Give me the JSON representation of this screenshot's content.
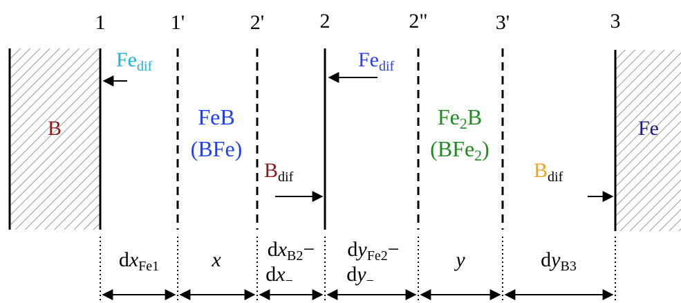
{
  "boundaries": {
    "b1": "1",
    "b1p": "1'",
    "b2p": "2'",
    "b2": "2",
    "b2pp": "2\"",
    "b3p": "3'",
    "b3": "3"
  },
  "regions": {
    "left_solid": "B",
    "feb_formula": "FeB",
    "feb_alt": "(BFe)",
    "fe2b_formula_main": "Fe",
    "fe2b_formula_sub": "2",
    "fe2b_formula_tail": "B",
    "fe2b_alt_open": "(BFe",
    "fe2b_alt_sub": "2",
    "fe2b_alt_close": ")",
    "right_solid": "Fe"
  },
  "fluxes": {
    "fe_dif_1_main": "Fe",
    "fe_dif_1_sub": "dif",
    "fe_dif_2_main": "Fe",
    "fe_dif_2_sub": "dif",
    "b_dif_1_main": "B",
    "b_dif_1_sub": "dif",
    "b_dif_2_main": "B",
    "b_dif_2_sub": "dif"
  },
  "thickness": {
    "dx_fe1_d": "d",
    "dx_fe1_var": "x",
    "dx_fe1_sub": "Fe1",
    "x_var": "x",
    "dx_b2_d": "d",
    "dx_b2_var": "x",
    "dx_b2_sub": "B2",
    "dx_b2_op": "−",
    "dx_minus_d": "d",
    "dx_minus_var": "x",
    "dx_minus_sub": "−",
    "dy_fe2_d": "d",
    "dy_fe2_var": "y",
    "dy_fe2_sub": "Fe2",
    "dy_fe2_op": "−",
    "dy_minus_d": "d",
    "dy_minus_var": "y",
    "dy_minus_sub": "−",
    "y_var": "y",
    "dy_b3_d": "d",
    "dy_b3_var": "y",
    "dy_b3_sub": "B3"
  },
  "colors": {
    "boron": "#8b1a1a",
    "feb": "#1f3fff",
    "fe2b": "#1e8c1e",
    "fe_flux_light": "#1ab0e8",
    "fe_flux_dark": "#2a3cff",
    "b_flux_orange": "#f5a020",
    "iron": "#1a1a8c"
  }
}
